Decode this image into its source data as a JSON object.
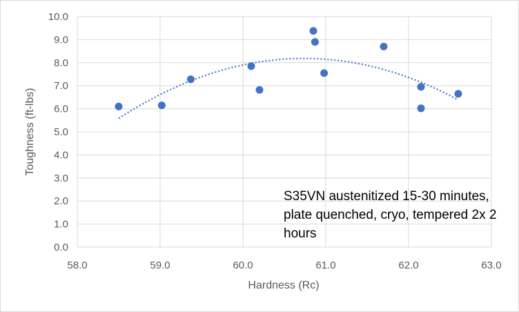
{
  "chart_data": {
    "type": "scatter",
    "title": "",
    "xlabel": "Hardness (Rc)",
    "ylabel": "Toughness (ft-lbs)",
    "xlim": [
      58.0,
      63.0
    ],
    "ylim": [
      0.0,
      10.0
    ],
    "x_ticks": [
      "58.0",
      "59.0",
      "60.0",
      "61.0",
      "62.0",
      "63.0"
    ],
    "y_ticks": [
      "0.0",
      "1.0",
      "2.0",
      "3.0",
      "4.0",
      "5.0",
      "6.0",
      "7.0",
      "8.0",
      "9.0",
      "10.0"
    ],
    "grid": "major gridlines on both axes",
    "legend": "none",
    "annotation": "S35VN austenitized 15-30 minutes, plate quenched, cryo, tempered 2x 2 hours",
    "series": [
      {
        "color": "#4472c4",
        "points": [
          {
            "x": 58.5,
            "y": 6.1
          },
          {
            "x": 59.02,
            "y": 6.15
          },
          {
            "x": 59.37,
            "y": 7.28
          },
          {
            "x": 60.1,
            "y": 7.85
          },
          {
            "x": 60.2,
            "y": 6.82
          },
          {
            "x": 60.85,
            "y": 9.38
          },
          {
            "x": 60.87,
            "y": 8.9
          },
          {
            "x": 60.98,
            "y": 7.55
          },
          {
            "x": 61.7,
            "y": 8.7
          },
          {
            "x": 62.15,
            "y": 6.95
          },
          {
            "x": 62.15,
            "y": 6.02
          },
          {
            "x": 62.6,
            "y": 6.65
          }
        ]
      }
    ],
    "trendline": {
      "type": "polynomial (order 2)",
      "style": "dotted",
      "color": "#4472c4",
      "x_range": [
        58.5,
        62.6
      ]
    }
  }
}
